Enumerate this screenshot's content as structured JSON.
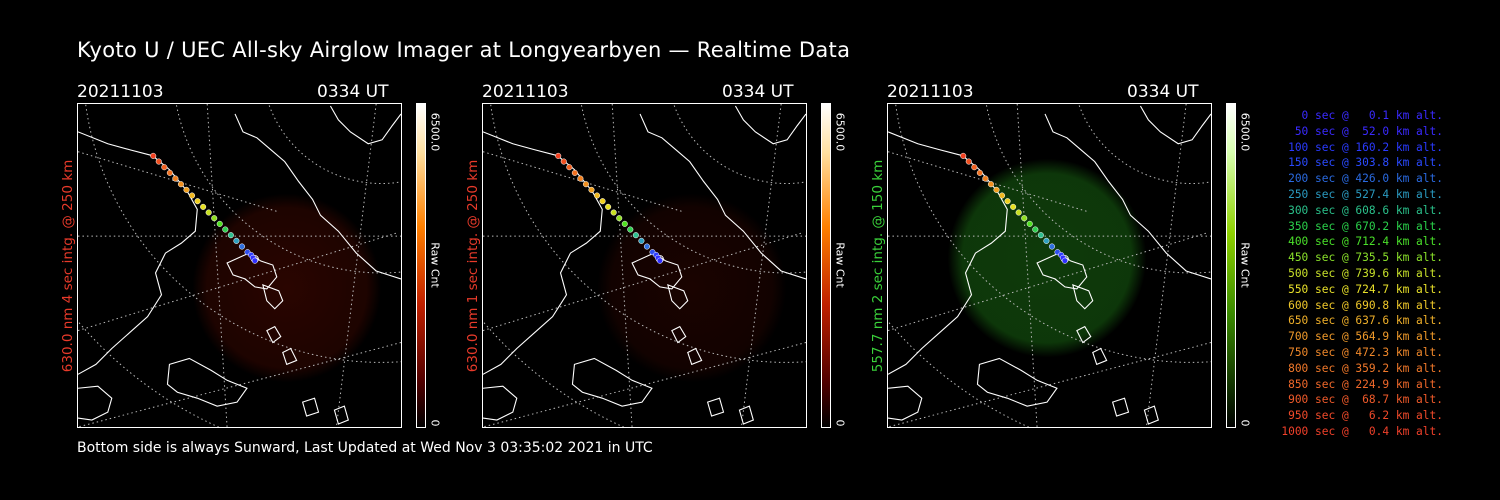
{
  "title": "Kyoto U / UEC All-sky Airglow Imager at Longyearbyen — Realtime Data",
  "footer": "Bottom side is always Sunward, Last Updated at Wed Nov  3 03:35:02 2021 in UTC",
  "panels": [
    {
      "date": "20211103",
      "time": "0334 UT",
      "ylabel": "630.0 nm 4 sec intg. @ 250 km",
      "ylabel_color": "#e83a2a",
      "cb_max": "6500.0",
      "cb_unit": "Raw Cnt",
      "cb_min": "0",
      "colormap": "red",
      "glow_color": "#2a0500"
    },
    {
      "date": "20211103",
      "time": "0334 UT",
      "ylabel": "630.0 nm 1 sec intg. @ 250 km",
      "ylabel_color": "#e83a2a",
      "cb_max": "6500.0",
      "cb_unit": "Raw Cnt",
      "cb_min": "0",
      "colormap": "red",
      "glow_color": "#1a0300"
    },
    {
      "date": "20211103",
      "time": "0334 UT",
      "ylabel": "557.7 nm 2 sec intg. @ 150 km",
      "ylabel_color": "#3ad13a",
      "cb_max": "6500.0",
      "cb_unit": "Raw Cnt",
      "cb_min": "0",
      "colormap": "green",
      "glow_color": "#0e3a0a"
    }
  ],
  "legend": [
    {
      "text": "0 sec @   0.1 km alt.",
      "color": "#3a2aff"
    },
    {
      "text": "50 sec @  52.0 km alt.",
      "color": "#3a2aff"
    },
    {
      "text": "100 sec @ 160.2 km alt.",
      "color": "#2a3aff"
    },
    {
      "text": "150 sec @ 303.8 km alt.",
      "color": "#2a4aff"
    },
    {
      "text": "200 sec @ 426.0 km alt.",
      "color": "#2a6ae0"
    },
    {
      "text": "250 sec @ 527.4 km alt.",
      "color": "#2a9ac0"
    },
    {
      "text": "300 sec @ 608.6 km alt.",
      "color": "#2ac08a"
    },
    {
      "text": "350 sec @ 670.2 km alt.",
      "color": "#2ad04a"
    },
    {
      "text": "400 sec @ 712.4 km alt.",
      "color": "#4ae02a"
    },
    {
      "text": "450 sec @ 735.5 km alt.",
      "color": "#8ae02a"
    },
    {
      "text": "500 sec @ 739.6 km alt.",
      "color": "#c8e02a"
    },
    {
      "text": "550 sec @ 724.7 km alt.",
      "color": "#e8e02a"
    },
    {
      "text": "600 sec @ 690.8 km alt.",
      "color": "#f0c82a"
    },
    {
      "text": "650 sec @ 637.6 km alt.",
      "color": "#f0b02a"
    },
    {
      "text": "700 sec @ 564.9 km alt.",
      "color": "#f09a2a"
    },
    {
      "text": "750 sec @ 472.3 km alt.",
      "color": "#f0882a"
    },
    {
      "text": "800 sec @ 359.2 km alt.",
      "color": "#f0782a"
    },
    {
      "text": "850 sec @ 224.9 km alt.",
      "color": "#f0682a"
    },
    {
      "text": "900 sec @  68.7 km alt.",
      "color": "#f05a2a"
    },
    {
      "text": "950 sec @   6.2 km alt.",
      "color": "#f04a2a"
    },
    {
      "text": "1000 sec @   0.4 km alt.",
      "color": "#f0402a"
    }
  ]
}
